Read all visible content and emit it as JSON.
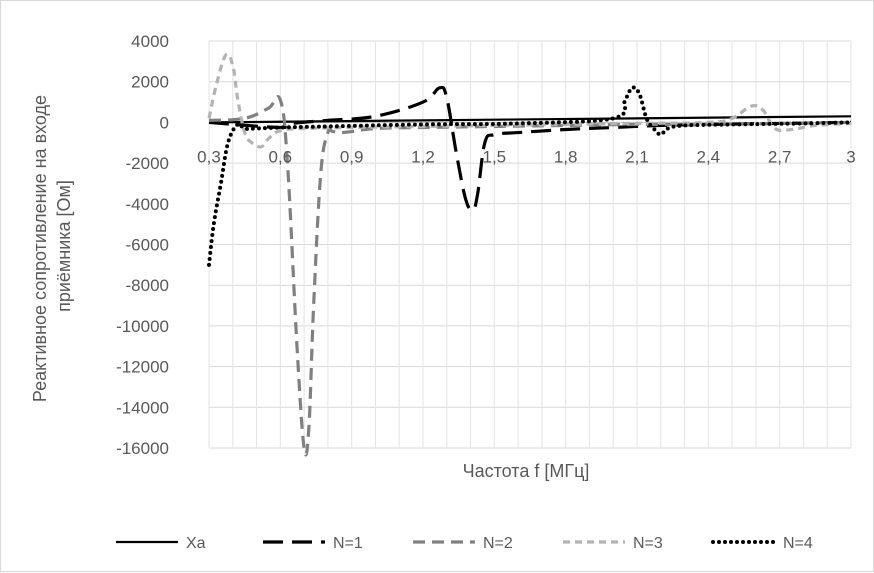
{
  "chart_data": {
    "type": "line",
    "title": "",
    "xlabel": "Частота f [МГц]",
    "ylabel_lines": [
      "Реактивное сопротивление на входе",
      "приёмника [Ом]"
    ],
    "xlim": [
      0.3,
      3
    ],
    "ylim": [
      -16000,
      4000
    ],
    "x_ticks": [
      0.3,
      0.6,
      0.9,
      1.2,
      1.5,
      1.8,
      2.1,
      2.4,
      2.7,
      3
    ],
    "x_tick_labels": [
      "0,3",
      "0,6",
      "0,9",
      "1,2",
      "1,5",
      "1,8",
      "2,1",
      "2,4",
      "2,7",
      "3"
    ],
    "y_ticks": [
      4000,
      2000,
      0,
      -2000,
      -4000,
      -6000,
      -8000,
      -10000,
      -12000,
      -14000,
      -16000
    ],
    "y_tick_labels": [
      "4000",
      "2000",
      "0",
      "-2000",
      "-4000",
      "-6000",
      "-8000",
      "-10000",
      "-12000",
      "-14000",
      "-16000"
    ],
    "grid": true,
    "legend_position": "bottom",
    "series": [
      {
        "name": "Xa",
        "color": "#000000",
        "dash": "solid",
        "x": [
          0.3,
          3.0
        ],
        "y": [
          0,
          300
        ]
      },
      {
        "name": "N=1",
        "color": "#000000",
        "dash": "long-dash",
        "x": [
          0.3,
          0.6,
          0.65,
          0.8,
          1.0,
          1.2,
          1.27,
          1.3,
          1.34,
          1.38,
          1.41,
          1.43,
          1.46,
          1.5,
          1.6,
          1.8,
          2.0,
          2.2,
          2.4,
          2.7,
          3.0
        ],
        "y": [
          0,
          -250,
          -50,
          100,
          300,
          1000,
          1700,
          1200,
          -1500,
          -3800,
          -4300,
          -3500,
          -1000,
          -600,
          -500,
          -350,
          -250,
          -150,
          -100,
          -50,
          0
        ]
      },
      {
        "name": "N=2",
        "color": "#808080",
        "dash": "dash",
        "x": [
          0.3,
          0.45,
          0.55,
          0.6,
          0.63,
          0.67,
          0.7,
          0.72,
          0.74,
          0.77,
          0.8,
          0.82,
          0.85,
          0.9,
          1.0,
          1.2,
          1.5,
          1.8,
          2.1,
          2.4,
          2.7,
          3.0
        ],
        "y": [
          100,
          200,
          700,
          1100,
          -2000,
          -11000,
          -16000,
          -15000,
          -9000,
          -2500,
          -500,
          -450,
          -500,
          -450,
          -300,
          -250,
          -200,
          -150,
          -100,
          -100,
          -50,
          0
        ]
      },
      {
        "name": "N=3",
        "color": "#b3b3b3",
        "dash": "short-dash",
        "x": [
          0.3,
          0.33,
          0.37,
          0.4,
          0.42,
          0.45,
          0.48,
          0.52,
          0.55,
          0.6,
          0.7,
          0.9,
          1.2,
          1.5,
          1.8,
          2.1,
          2.4,
          2.5,
          2.58,
          2.63,
          2.68,
          2.75,
          2.85,
          3.0
        ],
        "y": [
          200,
          1800,
          3300,
          2800,
          1200,
          -500,
          -1000,
          -1200,
          -800,
          -400,
          -300,
          -250,
          -200,
          -150,
          -100,
          -50,
          0,
          200,
          800,
          600,
          -300,
          -350,
          -150,
          -50
        ]
      },
      {
        "name": "N=4",
        "color": "#000000",
        "dash": "dot",
        "x": [
          0.3,
          0.32,
          0.35,
          0.38,
          0.42,
          0.45,
          0.5,
          0.6,
          0.8,
          1.2,
          1.6,
          2.0,
          2.05,
          2.08,
          2.11,
          2.14,
          2.17,
          2.2,
          2.23,
          2.3,
          2.5,
          2.8,
          3.0
        ],
        "y": [
          -7000,
          -5000,
          -3000,
          -1000,
          -100,
          -300,
          -300,
          -250,
          -200,
          -100,
          -50,
          200,
          1100,
          1700,
          1400,
          200,
          -300,
          -600,
          -300,
          -150,
          -100,
          -50,
          0
        ]
      }
    ]
  }
}
